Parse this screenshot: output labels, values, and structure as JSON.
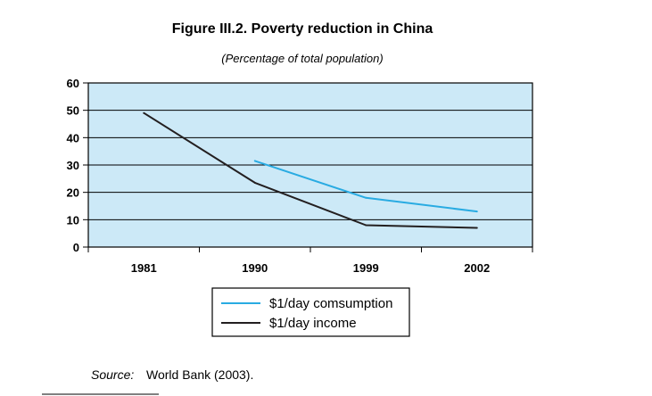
{
  "chart_data": {
    "type": "line",
    "title": "Figure III.2.  Poverty reduction in China",
    "subtitle": "(Percentage of total population)",
    "categories": [
      "1981",
      "1990",
      "1999",
      "2002"
    ],
    "ylim": [
      0,
      60
    ],
    "yticks": [
      0,
      10,
      20,
      30,
      40,
      50,
      60
    ],
    "grid": true,
    "legend_position": "bottom",
    "series": [
      {
        "name": "$1/day comsumption",
        "color": "#29abe2",
        "values": [
          null,
          31.5,
          18,
          13
        ]
      },
      {
        "name": "$1/day income",
        "color": "#231f20",
        "values": [
          49,
          23.5,
          8,
          7
        ]
      }
    ],
    "plot_background": "#cce9f7"
  },
  "source": {
    "label": "Source:",
    "text": "World Bank (2003)."
  }
}
